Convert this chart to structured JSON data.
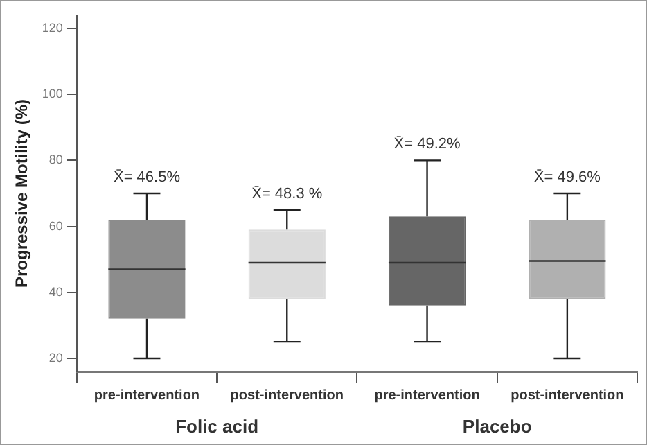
{
  "chart_data": {
    "type": "box",
    "ylabel": "Progressive Motility (%)",
    "categories": [
      "pre-intervention",
      "post-intervention",
      "pre-intervention",
      "post-intervention"
    ],
    "boxes": [
      {
        "low": 20,
        "q1": 32,
        "median": 47,
        "q3": 62,
        "high": 70
      },
      {
        "low": 25,
        "q1": 38,
        "median": 49,
        "q3": 59,
        "high": 65
      },
      {
        "low": 25,
        "q1": 36,
        "median": 49,
        "q3": 63,
        "high": 80
      },
      {
        "low": 20,
        "q1": 38,
        "median": 49.5,
        "q3": 62,
        "high": 70
      }
    ],
    "colors": [
      "#8c8c8c",
      "#dcdcdc",
      "#666666",
      "#b0b0b0"
    ],
    "ylim": [
      16,
      124
    ],
    "yticks": [
      20,
      40,
      60,
      80,
      100,
      120
    ],
    "grid": false,
    "legend": false,
    "annotations": [
      "X̄= 46.5%",
      "X̄= 48.3 %",
      "X̄= 49.2%",
      "X̄= 49.6%",
      "Folic acid",
      "Placebo"
    ]
  }
}
